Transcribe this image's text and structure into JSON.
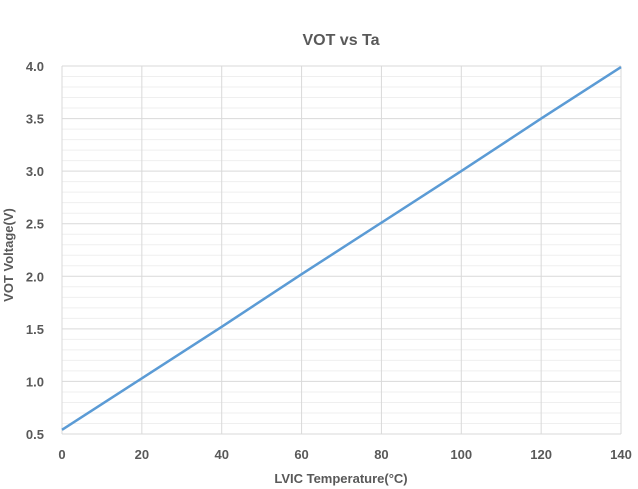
{
  "chart_data": {
    "type": "line",
    "title": "VOT vs Ta",
    "xlabel": "LVIC Temperature(°C)",
    "ylabel": "VOT Voltage(V)",
    "xlim": [
      0,
      140
    ],
    "ylim": [
      0.5,
      4.0
    ],
    "x_ticks": [
      "0",
      "20",
      "40",
      "60",
      "80",
      "100",
      "120",
      "140"
    ],
    "y_ticks": [
      "0.5",
      "1.0",
      "1.5",
      "2.0",
      "2.5",
      "3.0",
      "3.5",
      "4.0"
    ],
    "grid": true,
    "legend": "none",
    "series": [
      {
        "color": "#5B9BD5",
        "x": [
          0,
          20,
          40,
          60,
          80,
          100,
          120,
          140
        ],
        "y": [
          0.54,
          1.03,
          1.52,
          2.02,
          2.51,
          3.0,
          3.5,
          3.99
        ]
      }
    ]
  },
  "colors": {
    "major_grid": "#d9d9d9",
    "minor_grid": "#efefef",
    "text": "#595959"
  }
}
